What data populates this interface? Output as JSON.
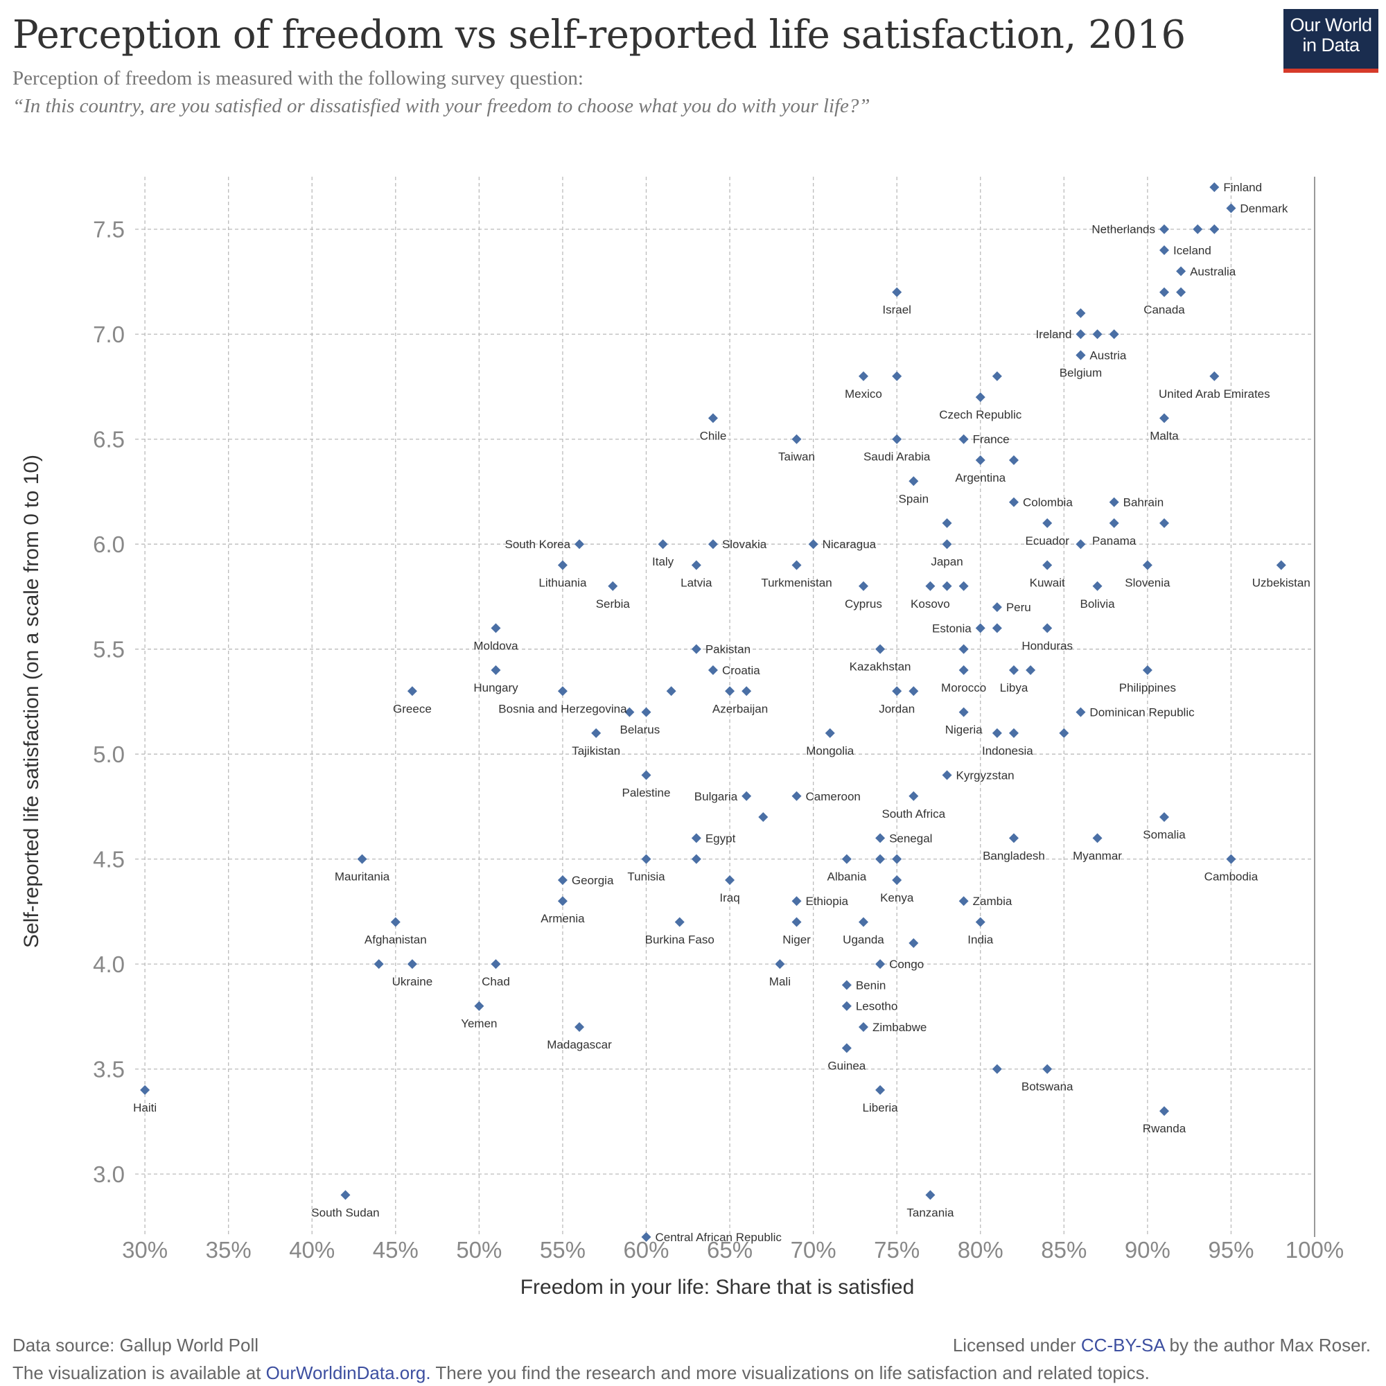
{
  "header": {
    "title": "Perception of freedom vs self-reported life satisfaction, 2016",
    "subtitle": "Perception of freedom is measured with the following survey question:",
    "subtitle_quote": "“In this country, are you satisfied or dissatisfied with your freedom to choose what you do with your life?”",
    "logo_line1": "Our World",
    "logo_line2": "in Data"
  },
  "footer": {
    "source": "Data source: Gallup World Poll",
    "license_prefix": "Licensed under ",
    "license_link": "CC-BY-SA",
    "license_suffix": " by the author Max Roser.",
    "visual_prefix": "The visualization is available at ",
    "visual_link": "OurWorldinData.org.",
    "visual_suffix": " There you find the research and more visualizations on life satisfaction and related topics."
  },
  "colors": {
    "marker": "#4a6fa5",
    "grid": "#bbbbbb",
    "axis": "#999999",
    "logo_bg": "#1a2d4f",
    "logo_accent": "#d63a2a",
    "link": "#3d4fa0"
  },
  "chart_data": {
    "type": "scatter",
    "title": "Perception of freedom vs self-reported life satisfaction, 2016",
    "xlabel": "Freedom in your life: Share that is satisfied",
    "ylabel": "Self-reported life satisfaction (on a scale from 0 to 10)",
    "xlim": [
      0.29,
      1.0
    ],
    "ylim": [
      2.7,
      7.75
    ],
    "x_ticks": [
      0.3,
      0.35,
      0.4,
      0.45,
      0.5,
      0.55,
      0.6,
      0.65,
      0.7,
      0.75,
      0.8,
      0.85,
      0.9,
      0.95,
      1.0
    ],
    "x_tick_labels": [
      "30%",
      "35%",
      "40%",
      "45%",
      "50%",
      "55%",
      "60%",
      "65%",
      "70%",
      "75%",
      "80%",
      "85%",
      "90%",
      "95%",
      "100%"
    ],
    "y_ticks": [
      3.0,
      3.5,
      4.0,
      4.5,
      5.0,
      5.5,
      6.0,
      6.5,
      7.0,
      7.5
    ],
    "y_tick_labels": [
      "3.0",
      "3.5",
      "4.0",
      "4.5",
      "5.0",
      "5.5",
      "6.0",
      "6.5",
      "7.0",
      "7.5"
    ],
    "grid": true,
    "points": [
      {
        "label": "Finland",
        "x": 0.94,
        "y": 7.7,
        "pos": "r"
      },
      {
        "label": "Denmark",
        "x": 0.95,
        "y": 7.6,
        "pos": "r"
      },
      {
        "label": "Netherlands",
        "x": 0.91,
        "y": 7.5,
        "pos": "l"
      },
      {
        "label": "",
        "x": 0.93,
        "y": 7.5
      },
      {
        "label": "",
        "x": 0.94,
        "y": 7.5
      },
      {
        "label": "Iceland",
        "x": 0.91,
        "y": 7.4,
        "pos": "r"
      },
      {
        "label": "Australia",
        "x": 0.92,
        "y": 7.3,
        "pos": "r"
      },
      {
        "label": "Canada",
        "x": 0.91,
        "y": 7.2,
        "pos": "b"
      },
      {
        "label": "",
        "x": 0.92,
        "y": 7.2
      },
      {
        "label": "Israel",
        "x": 0.75,
        "y": 7.2,
        "pos": "b"
      },
      {
        "label": "",
        "x": 0.86,
        "y": 7.1
      },
      {
        "label": "Ireland",
        "x": 0.86,
        "y": 7.0,
        "pos": "l"
      },
      {
        "label": "",
        "x": 0.87,
        "y": 7.0
      },
      {
        "label": "",
        "x": 0.88,
        "y": 7.0
      },
      {
        "label": "Austria",
        "x": 0.86,
        "y": 6.9,
        "pos": "r"
      },
      {
        "label": "Belgium",
        "x": 0.86,
        "y": 6.9,
        "pos": "b"
      },
      {
        "label": "United Arab Emirates",
        "x": 0.94,
        "y": 6.8,
        "pos": "b"
      },
      {
        "label": "Mexico",
        "x": 0.73,
        "y": 6.8,
        "pos": "b"
      },
      {
        "label": "",
        "x": 0.75,
        "y": 6.8
      },
      {
        "label": "",
        "x": 0.81,
        "y": 6.8
      },
      {
        "label": "Czech Republic",
        "x": 0.8,
        "y": 6.7,
        "pos": "b"
      },
      {
        "label": "Chile",
        "x": 0.64,
        "y": 6.6,
        "pos": "b"
      },
      {
        "label": "Malta",
        "x": 0.91,
        "y": 6.6,
        "pos": "b"
      },
      {
        "label": "Taiwan",
        "x": 0.69,
        "y": 6.5,
        "pos": "b"
      },
      {
        "label": "Saudi Arabia",
        "x": 0.75,
        "y": 6.5,
        "pos": "b"
      },
      {
        "label": "France",
        "x": 0.79,
        "y": 6.5,
        "pos": "r"
      },
      {
        "label": "Argentina",
        "x": 0.8,
        "y": 6.4,
        "pos": "b"
      },
      {
        "label": "",
        "x": 0.82,
        "y": 6.4
      },
      {
        "label": "Spain",
        "x": 0.76,
        "y": 6.3,
        "pos": "b"
      },
      {
        "label": "Colombia",
        "x": 0.82,
        "y": 6.2,
        "pos": "r"
      },
      {
        "label": "Bahrain",
        "x": 0.88,
        "y": 6.2,
        "pos": "r"
      },
      {
        "label": "",
        "x": 0.78,
        "y": 6.1
      },
      {
        "label": "Ecuador",
        "x": 0.84,
        "y": 6.1,
        "pos": "b"
      },
      {
        "label": "Panama",
        "x": 0.88,
        "y": 6.1,
        "pos": "b"
      },
      {
        "label": "",
        "x": 0.91,
        "y": 6.1
      },
      {
        "label": "South Korea",
        "x": 0.56,
        "y": 6.0,
        "pos": "l"
      },
      {
        "label": "Italy",
        "x": 0.61,
        "y": 6.0,
        "pos": "b"
      },
      {
        "label": "Slovakia",
        "x": 0.64,
        "y": 6.0,
        "pos": "r"
      },
      {
        "label": "Nicaragua",
        "x": 0.7,
        "y": 6.0,
        "pos": "r"
      },
      {
        "label": "Japan",
        "x": 0.78,
        "y": 6.0,
        "pos": "b"
      },
      {
        "label": "",
        "x": 0.86,
        "y": 6.0
      },
      {
        "label": "Lithuania",
        "x": 0.55,
        "y": 5.9,
        "pos": "b"
      },
      {
        "label": "Latvia",
        "x": 0.63,
        "y": 5.9,
        "pos": "b"
      },
      {
        "label": "Turkmenistan",
        "x": 0.69,
        "y": 5.9,
        "pos": "b"
      },
      {
        "label": "Kuwait",
        "x": 0.84,
        "y": 5.9,
        "pos": "b"
      },
      {
        "label": "Slovenia",
        "x": 0.9,
        "y": 5.9,
        "pos": "b"
      },
      {
        "label": "Uzbekistan",
        "x": 0.98,
        "y": 5.9,
        "pos": "b"
      },
      {
        "label": "Serbia",
        "x": 0.58,
        "y": 5.8,
        "pos": "b"
      },
      {
        "label": "Cyprus",
        "x": 0.73,
        "y": 5.8,
        "pos": "b"
      },
      {
        "label": "Kosovo",
        "x": 0.77,
        "y": 5.8,
        "pos": "b"
      },
      {
        "label": "",
        "x": 0.78,
        "y": 5.8
      },
      {
        "label": "",
        "x": 0.79,
        "y": 5.8
      },
      {
        "label": "Bolivia",
        "x": 0.87,
        "y": 5.8,
        "pos": "b"
      },
      {
        "label": "Peru",
        "x": 0.81,
        "y": 5.7,
        "pos": "r"
      },
      {
        "label": "Moldova",
        "x": 0.51,
        "y": 5.6,
        "pos": "b"
      },
      {
        "label": "Estonia",
        "x": 0.8,
        "y": 5.6,
        "pos": "l"
      },
      {
        "label": "",
        "x": 0.81,
        "y": 5.6
      },
      {
        "label": "Honduras",
        "x": 0.84,
        "y": 5.6,
        "pos": "b"
      },
      {
        "label": "Pakistan",
        "x": 0.63,
        "y": 5.5,
        "pos": "r"
      },
      {
        "label": "Kazakhstan",
        "x": 0.74,
        "y": 5.5,
        "pos": "b"
      },
      {
        "label": "",
        "x": 0.79,
        "y": 5.5
      },
      {
        "label": "Hungary",
        "x": 0.51,
        "y": 5.4,
        "pos": "b"
      },
      {
        "label": "Croatia",
        "x": 0.64,
        "y": 5.4,
        "pos": "r"
      },
      {
        "label": "Morocco",
        "x": 0.79,
        "y": 5.4,
        "pos": "b"
      },
      {
        "label": "Libya",
        "x": 0.82,
        "y": 5.4,
        "pos": "b"
      },
      {
        "label": "",
        "x": 0.83,
        "y": 5.4
      },
      {
        "label": "Philippines",
        "x": 0.9,
        "y": 5.4,
        "pos": "b"
      },
      {
        "label": "Greece",
        "x": 0.46,
        "y": 5.3,
        "pos": "b"
      },
      {
        "label": "Bosnia and Herzegovina",
        "x": 0.55,
        "y": 5.3,
        "pos": "b"
      },
      {
        "label": "",
        "x": 0.615,
        "y": 5.3
      },
      {
        "label": "Azerbaijan",
        "x": 0.65,
        "y": 5.3,
        "pos": "bsr"
      },
      {
        "label": "",
        "x": 0.66,
        "y": 5.3
      },
      {
        "label": "Jordan",
        "x": 0.75,
        "y": 5.3,
        "pos": "b"
      },
      {
        "label": "",
        "x": 0.76,
        "y": 5.3
      },
      {
        "label": "Belarus",
        "x": 0.59,
        "y": 5.2,
        "pos": "bsr"
      },
      {
        "label": "",
        "x": 0.6,
        "y": 5.2
      },
      {
        "label": "Nigeria",
        "x": 0.79,
        "y": 5.2,
        "pos": "b"
      },
      {
        "label": "Dominican Republic",
        "x": 0.86,
        "y": 5.2,
        "pos": "r"
      },
      {
        "label": "Tajikistan",
        "x": 0.57,
        "y": 5.1,
        "pos": "b"
      },
      {
        "label": "Mongolia",
        "x": 0.71,
        "y": 5.1,
        "pos": "b"
      },
      {
        "label": "Indonesia",
        "x": 0.81,
        "y": 5.1,
        "pos": "bsr"
      },
      {
        "label": "",
        "x": 0.82,
        "y": 5.1
      },
      {
        "label": "",
        "x": 0.85,
        "y": 5.1
      },
      {
        "label": "Palestine",
        "x": 0.6,
        "y": 4.9,
        "pos": "b"
      },
      {
        "label": "Kyrgyzstan",
        "x": 0.78,
        "y": 4.9,
        "pos": "r"
      },
      {
        "label": "Bulgaria",
        "x": 0.66,
        "y": 4.8,
        "pos": "l"
      },
      {
        "label": "Cameroon",
        "x": 0.69,
        "y": 4.8,
        "pos": "r"
      },
      {
        "label": "South Africa",
        "x": 0.76,
        "y": 4.8,
        "pos": "b"
      },
      {
        "label": "",
        "x": 0.67,
        "y": 4.7
      },
      {
        "label": "Somalia",
        "x": 0.91,
        "y": 4.7,
        "pos": "b"
      },
      {
        "label": "Egypt",
        "x": 0.63,
        "y": 4.6,
        "pos": "r"
      },
      {
        "label": "Senegal",
        "x": 0.74,
        "y": 4.6,
        "pos": "r"
      },
      {
        "label": "Bangladesh",
        "x": 0.82,
        "y": 4.6,
        "pos": "b"
      },
      {
        "label": "Myanmar",
        "x": 0.87,
        "y": 4.6,
        "pos": "b"
      },
      {
        "label": "Mauritania",
        "x": 0.43,
        "y": 4.5,
        "pos": "b"
      },
      {
        "label": "Tunisia",
        "x": 0.6,
        "y": 4.5,
        "pos": "b"
      },
      {
        "label": "",
        "x": 0.63,
        "y": 4.5
      },
      {
        "label": "Albania",
        "x": 0.72,
        "y": 4.5,
        "pos": "b"
      },
      {
        "label": "",
        "x": 0.74,
        "y": 4.5
      },
      {
        "label": "",
        "x": 0.75,
        "y": 4.5
      },
      {
        "label": "Cambodia",
        "x": 0.95,
        "y": 4.5,
        "pos": "b"
      },
      {
        "label": "Georgia",
        "x": 0.55,
        "y": 4.4,
        "pos": "r"
      },
      {
        "label": "Iraq",
        "x": 0.65,
        "y": 4.4,
        "pos": "b"
      },
      {
        "label": "Kenya",
        "x": 0.75,
        "y": 4.4,
        "pos": "b"
      },
      {
        "label": "Armenia",
        "x": 0.55,
        "y": 4.3,
        "pos": "b"
      },
      {
        "label": "Ethiopia",
        "x": 0.69,
        "y": 4.3,
        "pos": "r"
      },
      {
        "label": "Zambia",
        "x": 0.79,
        "y": 4.3,
        "pos": "r"
      },
      {
        "label": "Afghanistan",
        "x": 0.45,
        "y": 4.2,
        "pos": "b"
      },
      {
        "label": "Burkina Faso",
        "x": 0.62,
        "y": 4.2,
        "pos": "b"
      },
      {
        "label": "Niger",
        "x": 0.69,
        "y": 4.2,
        "pos": "b"
      },
      {
        "label": "Uganda",
        "x": 0.73,
        "y": 4.2,
        "pos": "b"
      },
      {
        "label": "India",
        "x": 0.8,
        "y": 4.2,
        "pos": "b"
      },
      {
        "label": "",
        "x": 0.76,
        "y": 4.1
      },
      {
        "label": "",
        "x": 0.44,
        "y": 4.0
      },
      {
        "label": "Ukraine",
        "x": 0.46,
        "y": 4.0,
        "pos": "b"
      },
      {
        "label": "Chad",
        "x": 0.51,
        "y": 4.0,
        "pos": "b"
      },
      {
        "label": "Mali",
        "x": 0.68,
        "y": 4.0,
        "pos": "b"
      },
      {
        "label": "Congo",
        "x": 0.74,
        "y": 4.0,
        "pos": "r"
      },
      {
        "label": "Benin",
        "x": 0.72,
        "y": 3.9,
        "pos": "r"
      },
      {
        "label": "Yemen",
        "x": 0.5,
        "y": 3.8,
        "pos": "b"
      },
      {
        "label": "Lesotho",
        "x": 0.72,
        "y": 3.8,
        "pos": "r"
      },
      {
        "label": "Madagascar",
        "x": 0.56,
        "y": 3.7,
        "pos": "b"
      },
      {
        "label": "Zimbabwe",
        "x": 0.73,
        "y": 3.7,
        "pos": "r"
      },
      {
        "label": "Guinea",
        "x": 0.72,
        "y": 3.6,
        "pos": "b"
      },
      {
        "label": "",
        "x": 0.81,
        "y": 3.5
      },
      {
        "label": "Botswana",
        "x": 0.84,
        "y": 3.5,
        "pos": "b"
      },
      {
        "label": "Haiti",
        "x": 0.3,
        "y": 3.4,
        "pos": "b"
      },
      {
        "label": "Liberia",
        "x": 0.74,
        "y": 3.4,
        "pos": "b"
      },
      {
        "label": "Rwanda",
        "x": 0.91,
        "y": 3.3,
        "pos": "b"
      },
      {
        "label": "South Sudan",
        "x": 0.42,
        "y": 2.9,
        "pos": "b"
      },
      {
        "label": "Tanzania",
        "x": 0.77,
        "y": 2.9,
        "pos": "b"
      },
      {
        "label": "Central African Republic",
        "x": 0.6,
        "y": 2.7,
        "pos": "r"
      }
    ]
  }
}
